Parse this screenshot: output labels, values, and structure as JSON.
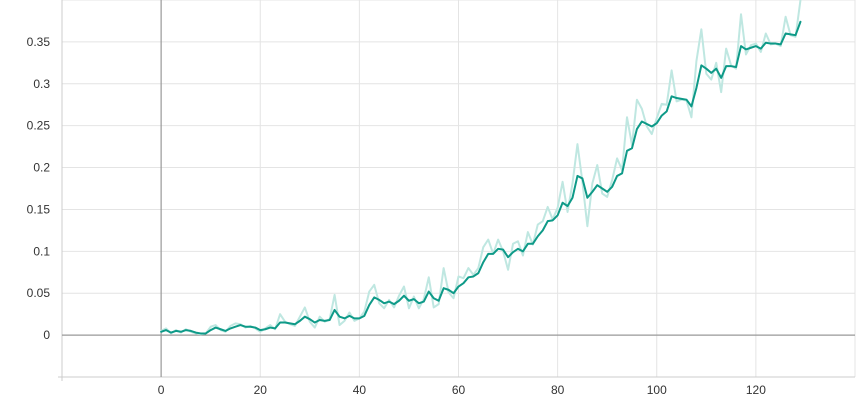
{
  "chart_data": {
    "type": "line",
    "title": "",
    "xlabel": "",
    "ylabel": "",
    "xlim": [
      -20,
      140
    ],
    "ylim": [
      -0.05,
      0.4
    ],
    "x_ticks": [
      "0",
      "20",
      "40",
      "60",
      "80",
      "100",
      "120"
    ],
    "y_ticks": [
      "0",
      "0.05",
      "0.1",
      "0.15",
      "0.2",
      "0.25",
      "0.3",
      "0.35"
    ],
    "grid": true,
    "legend": "none",
    "colors": {
      "smoothed": "#0e9a88",
      "raw": "#bfe7e1"
    },
    "series": [
      {
        "x": [
          0,
          1,
          2,
          3,
          4,
          5,
          6,
          7,
          8,
          9,
          10,
          11,
          12,
          13,
          14,
          15,
          16,
          17,
          18,
          19,
          20,
          21,
          22,
          23,
          24,
          25,
          26,
          27,
          28,
          29,
          30,
          31,
          32,
          33,
          34,
          35,
          36,
          37,
          38,
          39,
          40,
          41,
          42,
          43,
          44,
          45,
          46,
          47,
          48,
          49,
          50,
          51,
          52,
          53,
          54,
          55,
          56,
          57,
          58,
          59,
          60,
          61,
          62,
          63,
          64,
          65,
          66,
          67,
          68,
          69,
          70,
          71,
          72,
          73,
          74,
          75,
          76,
          77,
          78,
          79,
          80,
          81,
          82,
          83,
          84,
          85,
          86,
          87,
          88,
          89,
          90,
          91,
          92,
          93,
          94,
          95,
          96,
          97,
          98,
          99,
          100,
          101,
          102,
          103,
          104,
          105,
          106,
          107,
          108,
          109,
          110,
          111,
          112,
          113,
          114,
          115,
          116,
          117,
          118,
          119,
          120,
          121,
          122,
          123,
          124,
          125,
          126,
          127,
          128,
          129
        ],
        "values": [
          0.004,
          0.006,
          0.003,
          0.005,
          0.004,
          0.006,
          0.005,
          0.003,
          0.002,
          0.002,
          0.006,
          0.009,
          0.007,
          0.005,
          0.008,
          0.01,
          0.012,
          0.01,
          0.01,
          0.009,
          0.006,
          0.007,
          0.009,
          0.008,
          0.015,
          0.015,
          0.014,
          0.013,
          0.017,
          0.022,
          0.019,
          0.015,
          0.018,
          0.017,
          0.018,
          0.03,
          0.022,
          0.02,
          0.023,
          0.02,
          0.02,
          0.023,
          0.036,
          0.045,
          0.042,
          0.038,
          0.04,
          0.037,
          0.041,
          0.047,
          0.041,
          0.043,
          0.038,
          0.04,
          0.052,
          0.044,
          0.041,
          0.056,
          0.054,
          0.05,
          0.058,
          0.062,
          0.069,
          0.07,
          0.074,
          0.087,
          0.097,
          0.097,
          0.103,
          0.102,
          0.093,
          0.099,
          0.103,
          0.1,
          0.109,
          0.109,
          0.118,
          0.125,
          0.136,
          0.137,
          0.143,
          0.158,
          0.154,
          0.164,
          0.19,
          0.187,
          0.164,
          0.171,
          0.179,
          0.175,
          0.171,
          0.177,
          0.19,
          0.193,
          0.22,
          0.223,
          0.246,
          0.255,
          0.252,
          0.249,
          0.253,
          0.262,
          0.267,
          0.285,
          0.283,
          0.282,
          0.281,
          0.273,
          0.295,
          0.322,
          0.318,
          0.313,
          0.318,
          0.307,
          0.321,
          0.321,
          0.32,
          0.345,
          0.341,
          0.343,
          0.345,
          0.342,
          0.349,
          0.348,
          0.348,
          0.347,
          0.36,
          0.359,
          0.358,
          0.374
        ]
      },
      {
        "x": [
          0,
          1,
          2,
          3,
          4,
          5,
          6,
          7,
          8,
          9,
          10,
          11,
          12,
          13,
          14,
          15,
          16,
          17,
          18,
          19,
          20,
          21,
          22,
          23,
          24,
          25,
          26,
          27,
          28,
          29,
          30,
          31,
          32,
          33,
          34,
          35,
          36,
          37,
          38,
          39,
          40,
          41,
          42,
          43,
          44,
          45,
          46,
          47,
          48,
          49,
          50,
          51,
          52,
          53,
          54,
          55,
          56,
          57,
          58,
          59,
          60,
          61,
          62,
          63,
          64,
          65,
          66,
          67,
          68,
          69,
          70,
          71,
          72,
          73,
          74,
          75,
          76,
          77,
          78,
          79,
          80,
          81,
          82,
          83,
          84,
          85,
          86,
          87,
          88,
          89,
          90,
          91,
          92,
          93,
          94,
          95,
          96,
          97,
          98,
          99,
          100,
          101,
          102,
          103,
          104,
          105,
          106,
          107,
          108,
          109,
          110,
          111,
          112,
          113,
          114,
          115,
          116,
          117,
          118,
          119,
          120,
          121,
          122,
          123,
          124,
          125,
          126,
          127,
          128,
          129
        ],
        "values": [
          0.005,
          0.008,
          0.002,
          0.006,
          0.003,
          0.007,
          0.004,
          0.002,
          0.001,
          0.002,
          0.01,
          0.012,
          0.006,
          0.004,
          0.011,
          0.014,
          0.013,
          0.009,
          0.011,
          0.008,
          0.004,
          0.008,
          0.012,
          0.007,
          0.025,
          0.016,
          0.013,
          0.011,
          0.022,
          0.033,
          0.016,
          0.009,
          0.022,
          0.016,
          0.019,
          0.048,
          0.012,
          0.017,
          0.027,
          0.017,
          0.02,
          0.028,
          0.052,
          0.06,
          0.038,
          0.032,
          0.042,
          0.033,
          0.047,
          0.058,
          0.032,
          0.046,
          0.032,
          0.043,
          0.069,
          0.033,
          0.037,
          0.08,
          0.051,
          0.044,
          0.07,
          0.068,
          0.08,
          0.072,
          0.08,
          0.105,
          0.114,
          0.097,
          0.114,
          0.1,
          0.078,
          0.109,
          0.112,
          0.095,
          0.123,
          0.108,
          0.132,
          0.136,
          0.153,
          0.138,
          0.152,
          0.183,
          0.147,
          0.181,
          0.228,
          0.183,
          0.13,
          0.181,
          0.203,
          0.169,
          0.165,
          0.185,
          0.211,
          0.197,
          0.26,
          0.227,
          0.281,
          0.27,
          0.249,
          0.24,
          0.259,
          0.276,
          0.275,
          0.316,
          0.279,
          0.281,
          0.28,
          0.26,
          0.327,
          0.365,
          0.312,
          0.305,
          0.325,
          0.29,
          0.342,
          0.322,
          0.318,
          0.383,
          0.335,
          0.346,
          0.348,
          0.338,
          0.36,
          0.347,
          0.348,
          0.345,
          0.38,
          0.358,
          0.356,
          0.4
        ]
      }
    ]
  }
}
